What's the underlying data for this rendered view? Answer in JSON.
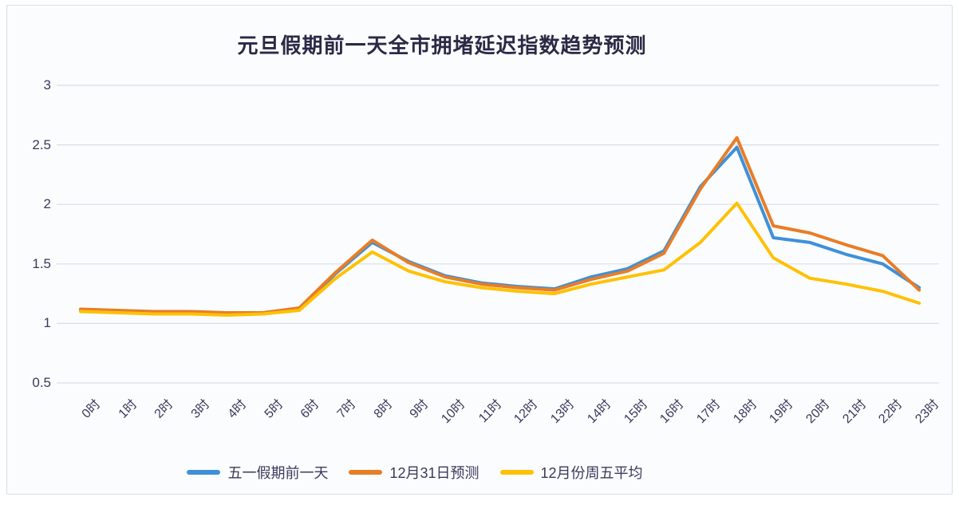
{
  "title": "元旦假期前一天全市拥堵延迟指数趋势预测",
  "chart_data": {
    "type": "line",
    "title": "元旦假期前一天全市拥堵延迟指数趋势预测",
    "categories": [
      "0时",
      "1时",
      "2时",
      "3时",
      "4时",
      "5时",
      "6时",
      "7时",
      "8时",
      "9时",
      "10时",
      "11时",
      "12时",
      "13时",
      "14时",
      "15时",
      "16时",
      "17时",
      "18时",
      "19时",
      "20时",
      "21时",
      "22时",
      "23时"
    ],
    "series": [
      {
        "name": "五一假期前一天",
        "color": "#3f90d8",
        "values": [
          1.11,
          1.1,
          1.09,
          1.09,
          1.08,
          1.08,
          1.12,
          1.42,
          1.68,
          1.52,
          1.4,
          1.34,
          1.31,
          1.29,
          1.39,
          1.46,
          1.61,
          2.15,
          2.48,
          1.72,
          1.68,
          1.58,
          1.5,
          1.3
        ]
      },
      {
        "name": "12月31日预测",
        "color": "#e87d27",
        "values": [
          1.12,
          1.11,
          1.1,
          1.1,
          1.09,
          1.09,
          1.13,
          1.43,
          1.7,
          1.51,
          1.39,
          1.33,
          1.3,
          1.28,
          1.37,
          1.44,
          1.59,
          2.13,
          2.56,
          1.82,
          1.76,
          1.66,
          1.57,
          1.28
        ]
      },
      {
        "name": "12月份周五平均",
        "color": "#ffc104",
        "values": [
          1.1,
          1.09,
          1.08,
          1.08,
          1.07,
          1.08,
          1.11,
          1.38,
          1.6,
          1.44,
          1.35,
          1.3,
          1.27,
          1.25,
          1.33,
          1.39,
          1.45,
          1.68,
          2.01,
          1.55,
          1.38,
          1.33,
          1.27,
          1.17
        ]
      }
    ],
    "xlabel": "",
    "ylabel": "",
    "ylim": [
      0.5,
      3
    ],
    "yticks": [
      "0.5",
      "1",
      "1.5",
      "2",
      "2.5",
      "3"
    ],
    "grid": true,
    "legend_position": "bottom"
  },
  "colors": {
    "background": "#fafcfe",
    "border": "#d9dde3",
    "gridline": "#d9dee5",
    "text": "#3a3a5c",
    "title_text": "#2a2a45"
  }
}
